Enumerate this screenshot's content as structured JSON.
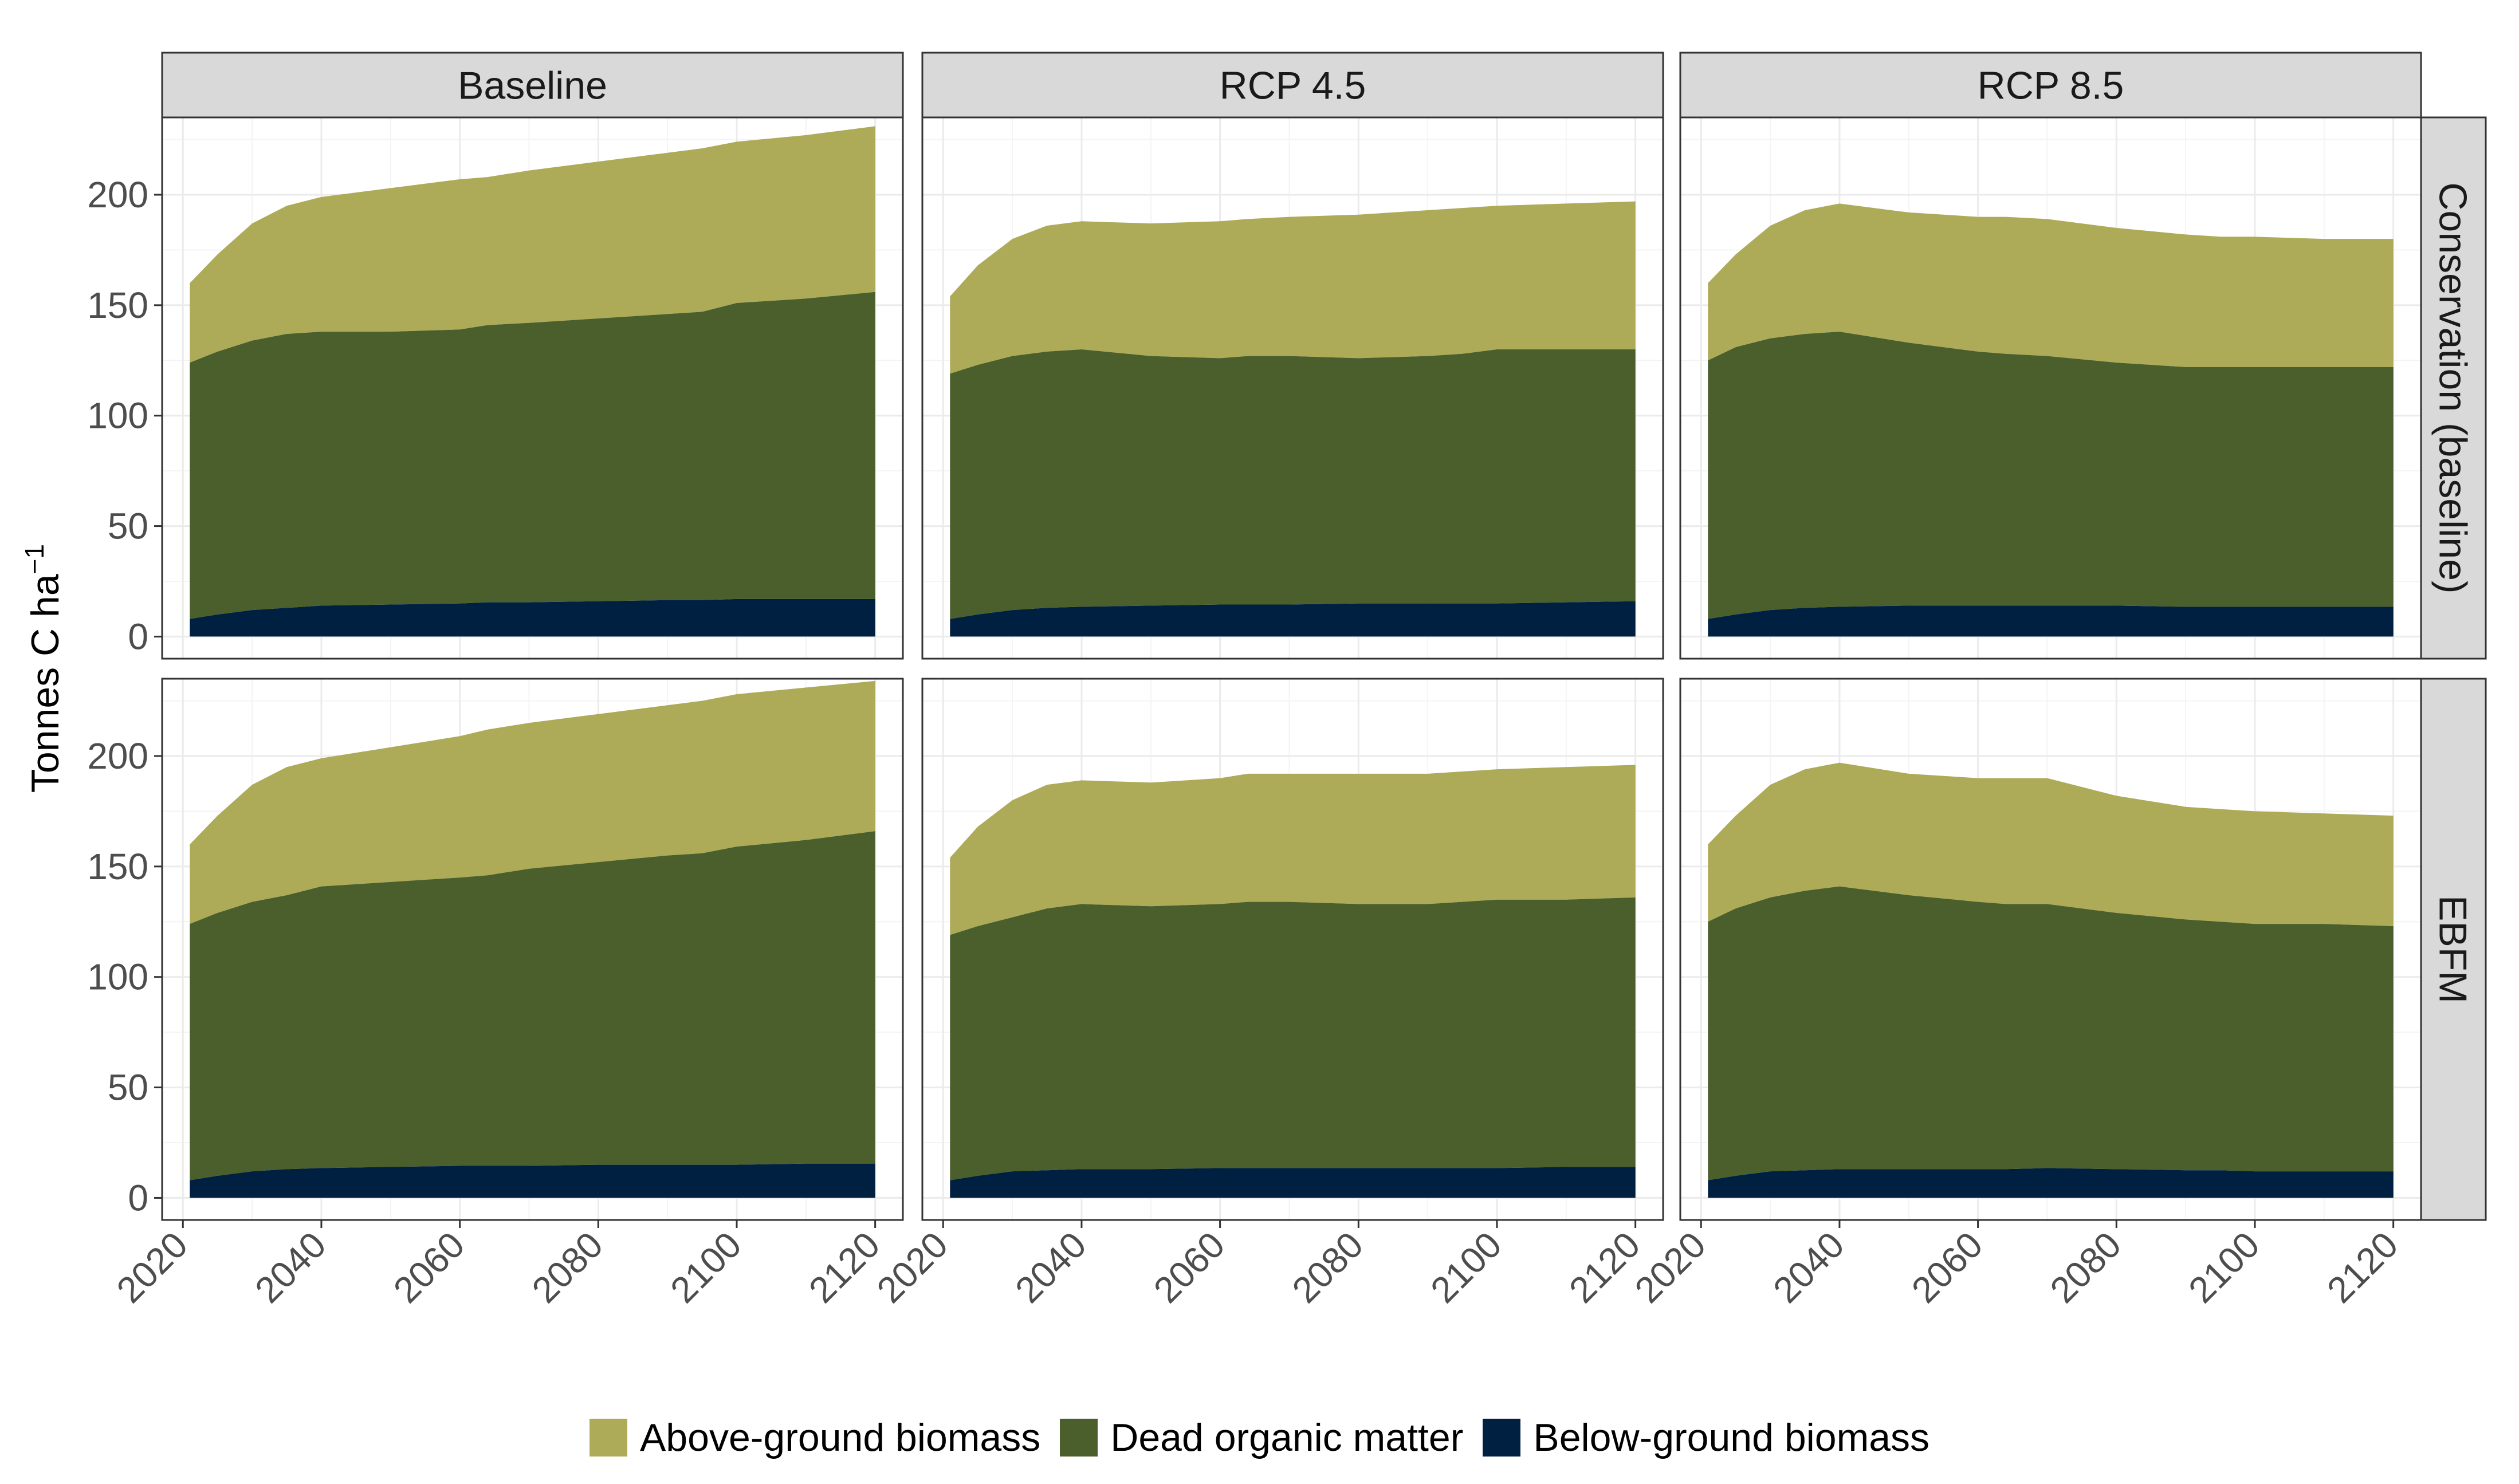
{
  "colors": {
    "above": "#adab58",
    "dead": "#4a5f2b",
    "below": "#002041",
    "strip": "#d9d9d9",
    "grid_major": "#ebebeb",
    "grid_minor": "#f4f4f4",
    "axis_text": "#4d4d4d"
  },
  "legend": {
    "items": [
      {
        "key": "above",
        "label": "Above-ground biomass"
      },
      {
        "key": "dead",
        "label": "Dead organic matter"
      },
      {
        "key": "below",
        "label": "Below-ground biomass"
      }
    ]
  },
  "chart_data": {
    "type": "area",
    "stacked": true,
    "title": "",
    "ylabel": "Tonnes C ha",
    "ylabel_superscript": "−1",
    "xlabel": "",
    "xlim": [
      2017,
      2124
    ],
    "ylim": [
      -10,
      235
    ],
    "x_ticks": [
      2020,
      2040,
      2060,
      2080,
      2100,
      2120
    ],
    "y_ticks": [
      0,
      50,
      100,
      150,
      200
    ],
    "columns": [
      "Baseline",
      "RCP 4.5",
      "RCP 8.5"
    ],
    "rows": [
      "Conservation (baseline)",
      "EBFM"
    ],
    "series_names": [
      "Below-ground biomass",
      "Dead organic matter",
      "Above-ground biomass"
    ],
    "x": [
      2021,
      2025,
      2030,
      2035,
      2040,
      2050,
      2060,
      2064,
      2070,
      2080,
      2090,
      2095,
      2100,
      2110,
      2120
    ],
    "panels": [
      {
        "row": "Conservation (baseline)",
        "col": "Baseline",
        "below": [
          8,
          10,
          12,
          13,
          14,
          14.5,
          15,
          15.5,
          15.5,
          16,
          16.5,
          16.5,
          17,
          17,
          17
        ],
        "dead": [
          124,
          129,
          134,
          137,
          138,
          138,
          139,
          141,
          142,
          144,
          146,
          147,
          151,
          153,
          156
        ],
        "total": [
          160,
          173,
          187,
          195,
          199,
          203,
          207,
          208,
          211,
          215,
          219,
          221,
          224,
          227,
          231
        ]
      },
      {
        "row": "Conservation (baseline)",
        "col": "RCP 4.5",
        "below": [
          8,
          10,
          12,
          13,
          13.5,
          14,
          14.5,
          14.5,
          14.5,
          15,
          15,
          15,
          15,
          15.5,
          16
        ],
        "dead": [
          119,
          123,
          127,
          129,
          130,
          127,
          126,
          127,
          127,
          126,
          127,
          128,
          130,
          130,
          130
        ],
        "total": [
          154,
          168,
          180,
          186,
          188,
          187,
          188,
          189,
          190,
          191,
          193,
          194,
          195,
          196,
          197
        ]
      },
      {
        "row": "Conservation (baseline)",
        "col": "RCP 8.5",
        "below": [
          8,
          10,
          12,
          13,
          13.5,
          14,
          14,
          14,
          14,
          14,
          13.5,
          13.5,
          13.5,
          13.5,
          13.5
        ],
        "dead": [
          125,
          131,
          135,
          137,
          138,
          133,
          129,
          128,
          127,
          124,
          122,
          122,
          122,
          122,
          122
        ],
        "total": [
          160,
          173,
          186,
          193,
          196,
          192,
          190,
          190,
          189,
          185,
          182,
          181,
          181,
          180,
          180
        ]
      },
      {
        "row": "EBFM",
        "col": "Baseline",
        "below": [
          8,
          10,
          12,
          13,
          13.5,
          14,
          14.5,
          14.5,
          14.5,
          15,
          15,
          15,
          15,
          15.5,
          15.5
        ],
        "dead": [
          124,
          129,
          134,
          137,
          141,
          143,
          145,
          146,
          149,
          152,
          155,
          156,
          159,
          162,
          166
        ],
        "total": [
          160,
          173,
          187,
          195,
          199,
          204,
          209,
          212,
          215,
          219,
          223,
          225,
          228,
          231,
          234
        ]
      },
      {
        "row": "EBFM",
        "col": "RCP 4.5",
        "below": [
          8,
          10,
          12,
          12.5,
          13,
          13,
          13.5,
          13.5,
          13.5,
          13.5,
          13.5,
          13.5,
          13.5,
          14,
          14
        ],
        "dead": [
          119,
          123,
          127,
          131,
          133,
          132,
          133,
          134,
          134,
          133,
          133,
          134,
          135,
          135,
          136
        ],
        "total": [
          154,
          168,
          180,
          187,
          189,
          188,
          190,
          192,
          192,
          192,
          192,
          193,
          194,
          195,
          196
        ]
      },
      {
        "row": "EBFM",
        "col": "RCP 8.5",
        "below": [
          8,
          10,
          12,
          12.5,
          13,
          13,
          13,
          13,
          13.5,
          13,
          12.5,
          12.5,
          12,
          12,
          12
        ],
        "dead": [
          125,
          131,
          136,
          139,
          141,
          137,
          134,
          133,
          133,
          129,
          126,
          125,
          124,
          124,
          123
        ],
        "total": [
          160,
          173,
          187,
          194,
          197,
          192,
          190,
          190,
          190,
          182,
          177,
          176,
          175,
          174,
          173
        ]
      }
    ]
  }
}
